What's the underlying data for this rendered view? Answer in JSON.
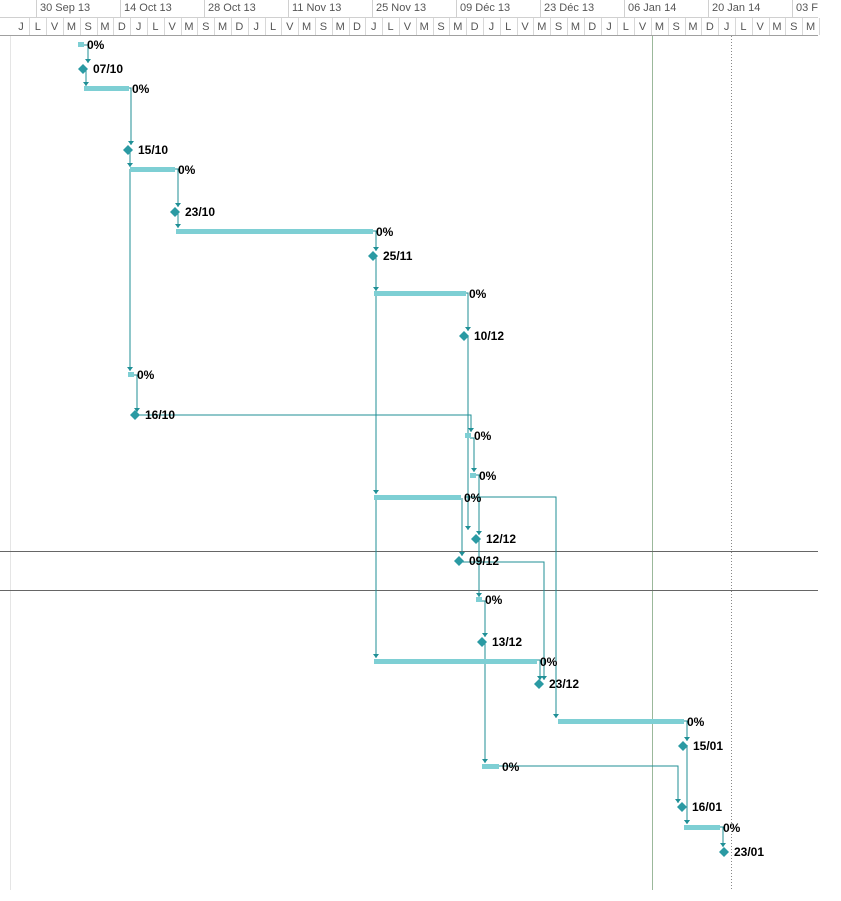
{
  "timescale": {
    "major": [
      "30 Sep 13",
      "14 Oct 13",
      "28 Oct 13",
      "11 Nov 13",
      "25 Nov 13",
      "09 Déc 13",
      "23 Déc 13",
      "06 Jan 14",
      "20 Jan 14",
      "03 F"
    ],
    "minor": [
      "J",
      "L",
      "V",
      "M",
      "S",
      "M",
      "D",
      "J",
      "L",
      "V",
      "M",
      "S",
      "M",
      "D",
      "J",
      "L",
      "V",
      "M",
      "S",
      "M",
      "D",
      "J",
      "L",
      "V",
      "M",
      "S",
      "M",
      "D",
      "J",
      "L",
      "V",
      "M",
      "S",
      "M",
      "D",
      "J",
      "L",
      "V",
      "M",
      "S",
      "M",
      "D",
      "J",
      "L",
      "V",
      "M",
      "S",
      "M"
    ]
  },
  "tasks": [
    {
      "type": "bar",
      "label": "0%"
    },
    {
      "type": "milestone",
      "label": "07/10"
    },
    {
      "type": "bar",
      "label": "0%"
    },
    {
      "type": "milestone",
      "label": "15/10"
    },
    {
      "type": "bar",
      "label": "0%"
    },
    {
      "type": "milestone",
      "label": "23/10"
    },
    {
      "type": "bar",
      "label": "0%"
    },
    {
      "type": "milestone",
      "label": "25/11"
    },
    {
      "type": "bar",
      "label": "0%"
    },
    {
      "type": "milestone",
      "label": "10/12"
    },
    {
      "type": "bar",
      "label": "0%"
    },
    {
      "type": "milestone",
      "label": "16/10"
    },
    {
      "type": "bar",
      "label": "0%"
    },
    {
      "type": "bar",
      "label": "0%"
    },
    {
      "type": "bar",
      "label": "0%"
    },
    {
      "type": "milestone",
      "label": "12/12"
    },
    {
      "type": "milestone",
      "label": "09/12"
    },
    {
      "type": "bar",
      "label": "0%"
    },
    {
      "type": "milestone",
      "label": "13/12"
    },
    {
      "type": "bar",
      "label": "0%"
    },
    {
      "type": "milestone",
      "label": "23/12"
    },
    {
      "type": "bar",
      "label": "0%"
    },
    {
      "type": "milestone",
      "label": "15/01"
    },
    {
      "type": "bar",
      "label": "0%"
    },
    {
      "type": "milestone",
      "label": "16/01"
    },
    {
      "type": "bar",
      "label": "0%"
    },
    {
      "type": "milestone",
      "label": "23/01"
    }
  ],
  "colors": {
    "bar": "#7ecfd4",
    "milestone": "#2a9aa3",
    "link": "#1f8f96",
    "grid": "#c8c8c8",
    "today_line": "#9bb89b"
  }
}
